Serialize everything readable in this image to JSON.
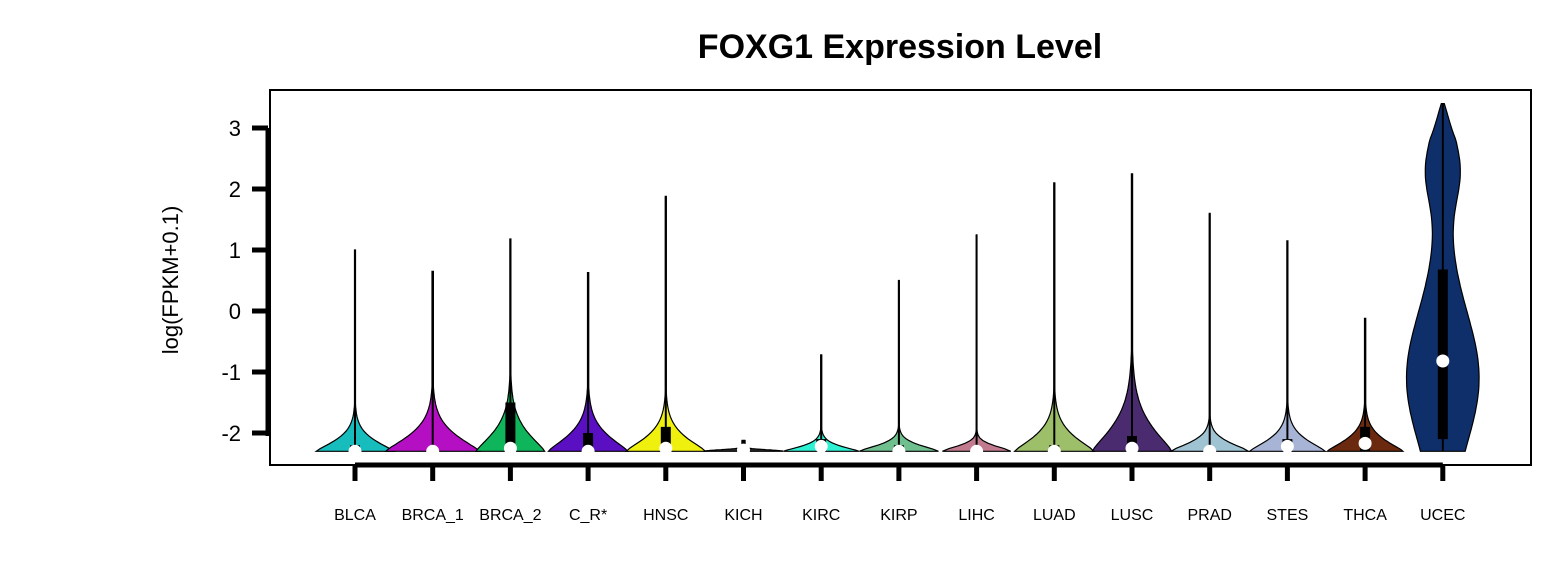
{
  "chart_data": {
    "type": "violin",
    "title": "FOXG1 Expression Level",
    "xlabel": "",
    "ylabel": "log(FPKM+0.1)",
    "ylim": [
      -2.5,
      3.6
    ],
    "yticks": [
      3,
      2,
      1,
      0,
      -1,
      -2
    ],
    "ytick_labels": [
      "3",
      "2",
      "1",
      "0",
      "-1",
      "-2"
    ],
    "grid": false,
    "legend": "none",
    "categories": [
      "BLCA",
      "BRCA_1",
      "BRCA_2",
      "C_R*",
      "HNSC",
      "KICH",
      "KIRC",
      "KIRP",
      "LIHC",
      "LUAD",
      "LUSC",
      "PRAD",
      "STES",
      "THCA",
      "UCEC"
    ],
    "colors": [
      "#17BDBD",
      "#B40FC3",
      "#0FB55A",
      "#5A0FC3",
      "#F0F00F",
      "#2B2B2B",
      "#2EF0D2",
      "#6FBF8F",
      "#C27A8F",
      "#9DBF6A",
      "#4A2B6F",
      "#9FC3D2",
      "#A8B4D6",
      "#6B2A0F",
      "#0F2F6B"
    ],
    "series": [
      {
        "category": "BLCA",
        "min": -2.3,
        "max": 1.0,
        "q1": -2.3,
        "median": -2.3,
        "q3": -2.2,
        "max_width": 0.43,
        "shape": "B"
      },
      {
        "category": "BRCA_1",
        "min": -2.3,
        "max": 0.65,
        "q1": -2.3,
        "median": -2.3,
        "q3": -2.3,
        "max_width": 0.52,
        "shape": "A"
      },
      {
        "category": "BRCA_2",
        "min": -2.3,
        "max": 1.18,
        "q1": -2.3,
        "median": -2.25,
        "q3": -1.5,
        "max_width": 0.38,
        "shape": "A"
      },
      {
        "category": "C_R*",
        "min": -2.3,
        "max": 0.63,
        "q1": -2.3,
        "median": -2.3,
        "q3": -2.0,
        "max_width": 0.44,
        "shape": "A"
      },
      {
        "category": "HNSC",
        "min": -2.3,
        "max": 1.88,
        "q1": -2.3,
        "median": -2.25,
        "q3": -1.9,
        "max_width": 0.44,
        "shape": "B"
      },
      {
        "category": "KICH",
        "min": -2.3,
        "max": -2.12,
        "q1": -2.3,
        "median": -2.28,
        "q3": -2.25,
        "max_width": 0.44,
        "shape": "flat"
      },
      {
        "category": "KIRC",
        "min": -2.3,
        "max": -0.72,
        "q1": -2.3,
        "median": -2.22,
        "q3": -2.1,
        "max_width": 0.42,
        "shape": "B"
      },
      {
        "category": "KIRP",
        "min": -2.3,
        "max": 0.5,
        "q1": -2.3,
        "median": -2.3,
        "q3": -2.2,
        "max_width": 0.44,
        "shape": "C"
      },
      {
        "category": "LIHC",
        "min": -2.3,
        "max": 1.25,
        "q1": -2.3,
        "median": -2.3,
        "q3": -2.3,
        "max_width": 0.38,
        "shape": "D"
      },
      {
        "category": "LUAD",
        "min": -2.3,
        "max": 2.1,
        "q1": -2.3,
        "median": -2.3,
        "q3": -2.2,
        "max_width": 0.44,
        "shape": "B"
      },
      {
        "category": "LUSC",
        "min": -2.3,
        "max": 2.25,
        "q1": -2.3,
        "median": -2.25,
        "q3": -2.05,
        "max_width": 0.44,
        "shape": "A"
      },
      {
        "category": "PRAD",
        "min": -2.3,
        "max": 1.6,
        "q1": -2.3,
        "median": -2.3,
        "q3": -2.3,
        "max_width": 0.43,
        "shape": "C"
      },
      {
        "category": "STES",
        "min": -2.3,
        "max": 1.15,
        "q1": -2.3,
        "median": -2.22,
        "q3": -2.1,
        "max_width": 0.42,
        "shape": "B"
      },
      {
        "category": "THCA",
        "min": -2.3,
        "max": -0.12,
        "q1": -2.3,
        "median": -2.17,
        "q3": -1.9,
        "max_width": 0.42,
        "shape": "A"
      },
      {
        "category": "UCEC",
        "min": -2.3,
        "max": 3.4,
        "q1": -2.1,
        "median": -0.82,
        "q3": 0.68,
        "max_width": 0.42,
        "shape": "U"
      }
    ]
  }
}
